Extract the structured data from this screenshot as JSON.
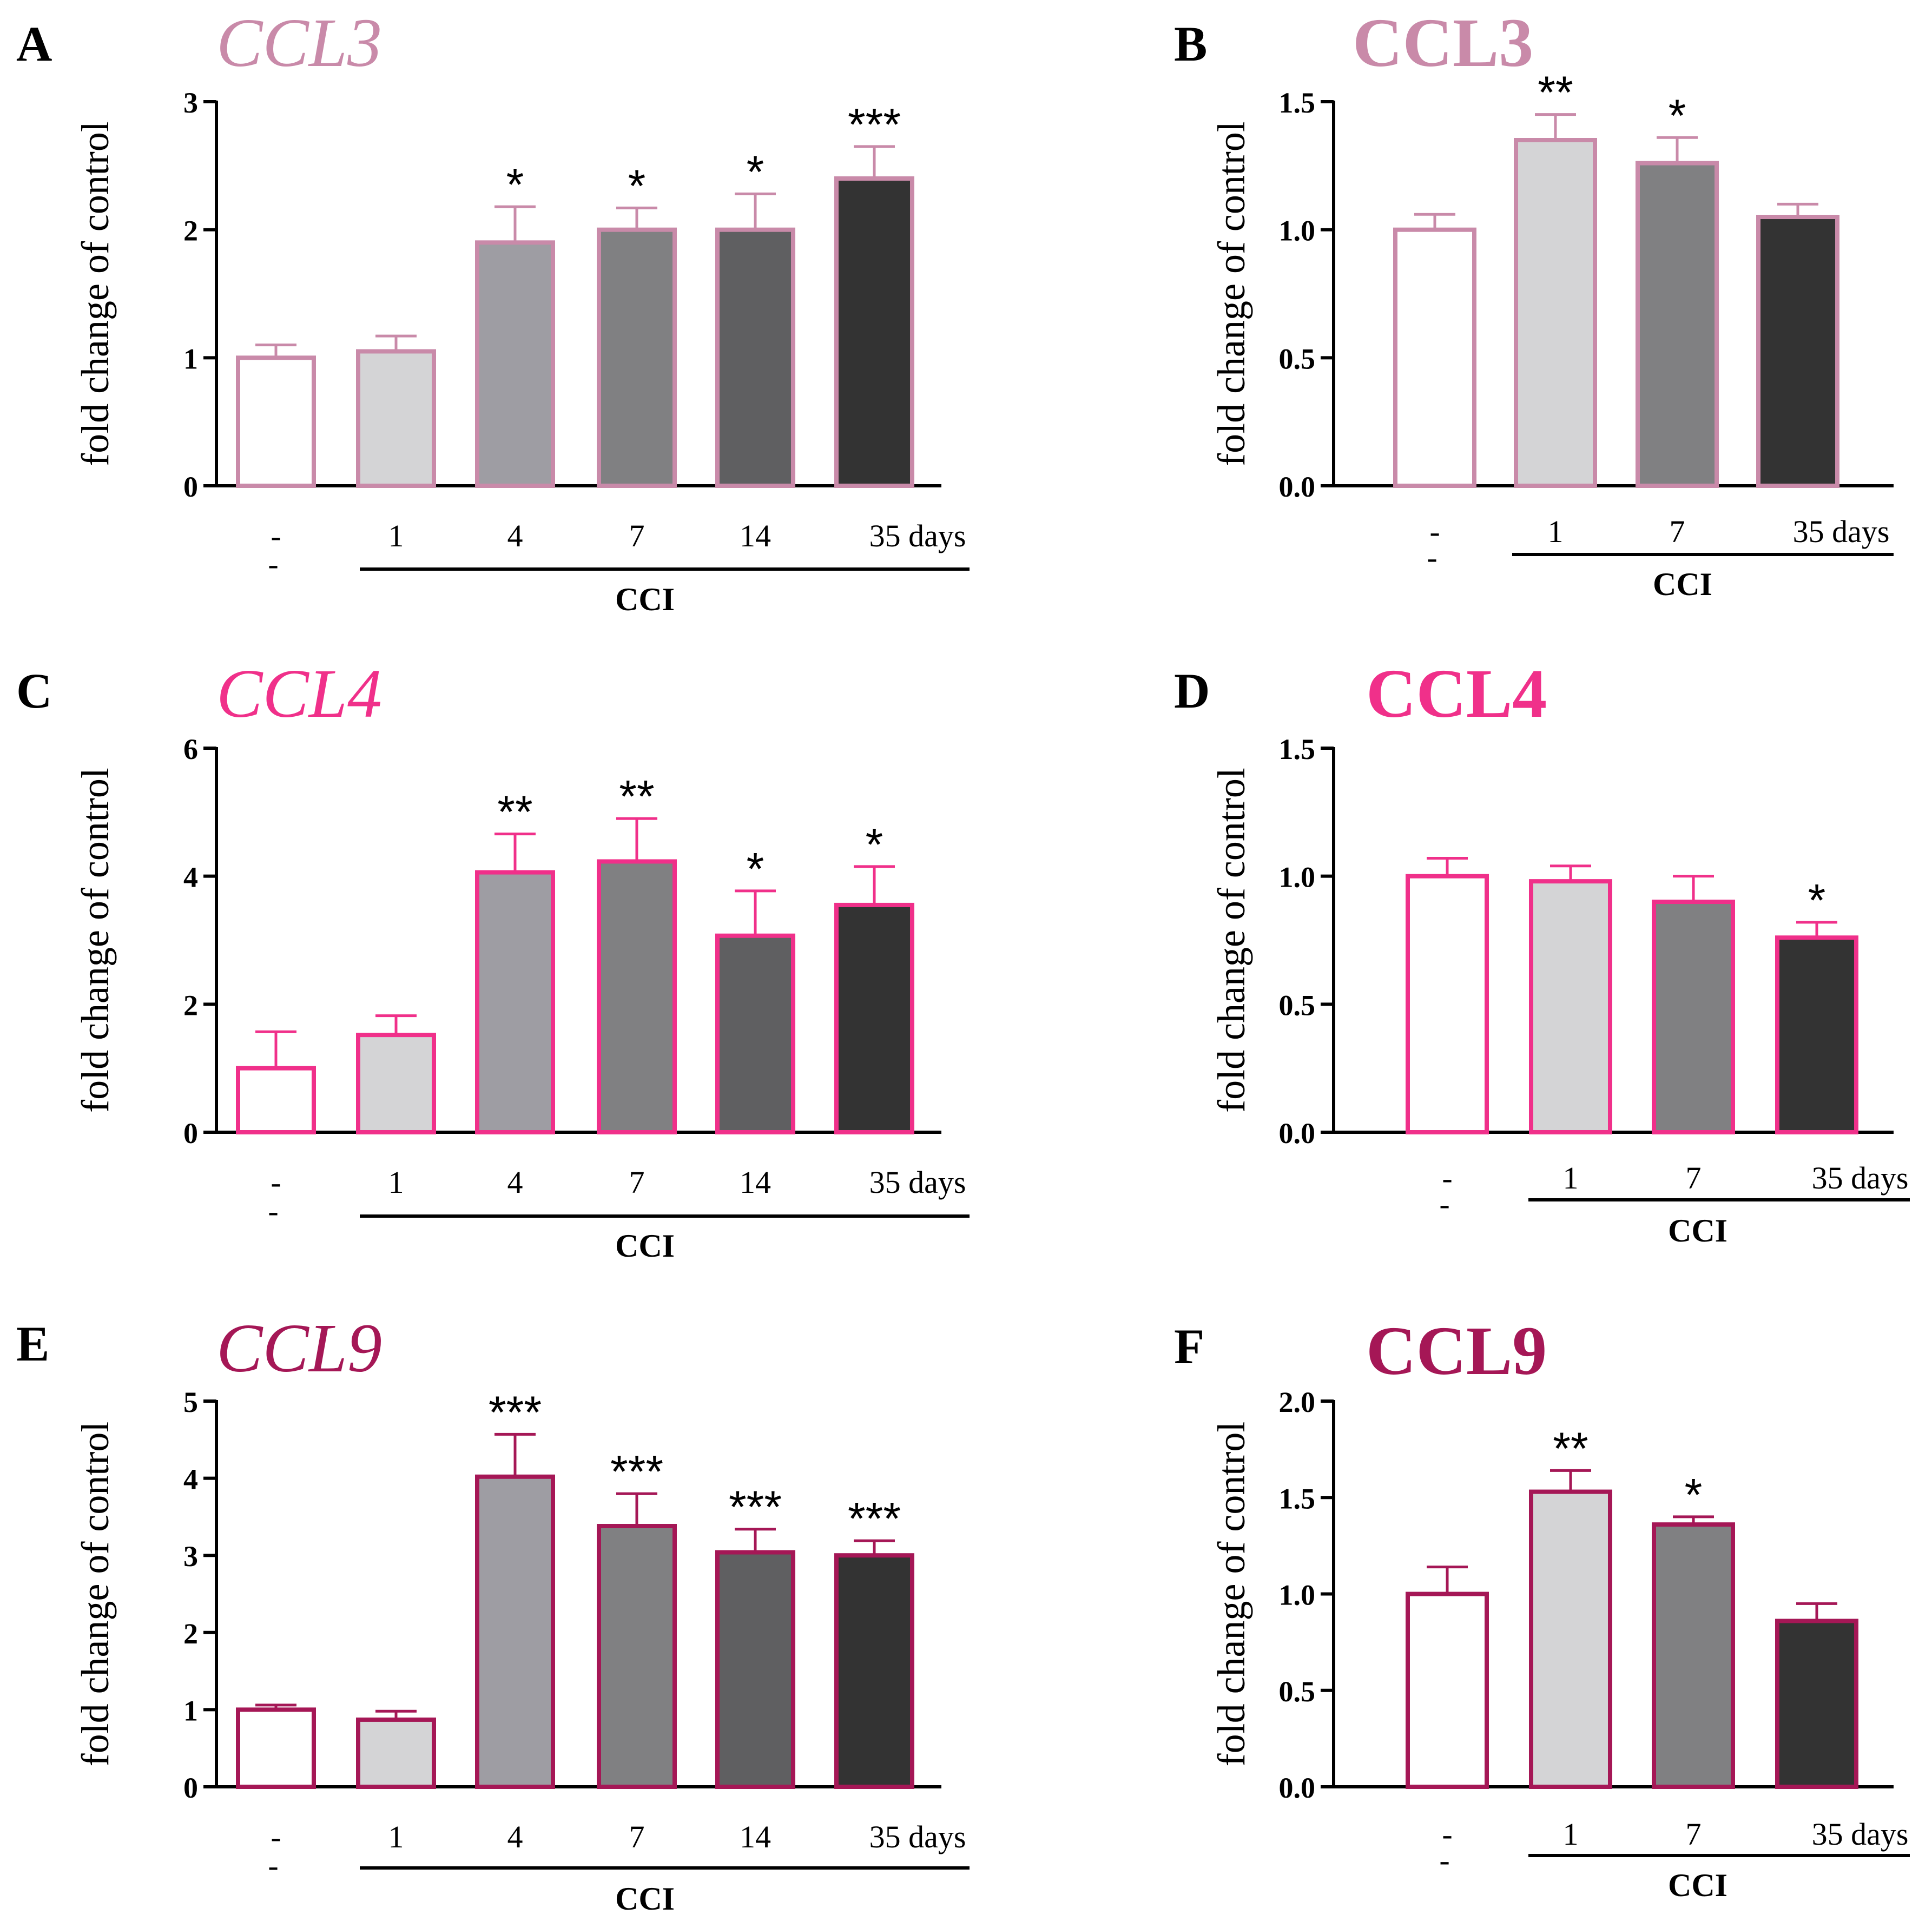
{
  "figure": {
    "ylabel": "fold change of control",
    "control_label": "-",
    "control_label_2": "-",
    "group_label": "CCI",
    "bar_fills": [
      "#ffffff",
      "#d4d4d6",
      "#9e9da3",
      "#808082",
      "#5f5f61",
      "#333333"
    ]
  },
  "chart_data": [
    {
      "panel": "A",
      "title": "CCL3",
      "title_style": "italic",
      "color": "#c98aa9",
      "type": "bar",
      "xlabel": "",
      "ylabel": "fold change of control",
      "categories": [
        "-",
        "1",
        "4",
        "7",
        "14",
        "35 days"
      ],
      "values": [
        1.0,
        1.05,
        1.9,
        2.0,
        2.0,
        2.4
      ],
      "errors": [
        0.1,
        0.12,
        0.28,
        0.17,
        0.28,
        0.25
      ],
      "sig": [
        "",
        "",
        "*",
        "*",
        "*",
        "***"
      ],
      "ylim": [
        0,
        3
      ],
      "yticks": [
        0,
        1,
        2,
        3
      ],
      "ytick_labels": [
        "0",
        "1",
        "2",
        "3"
      ]
    },
    {
      "panel": "B",
      "title": "CCL3",
      "title_style": "bold",
      "color": "#c98aa9",
      "type": "bar",
      "xlabel": "",
      "ylabel": "fold change of control",
      "categories": [
        "-",
        "1",
        "7",
        "35 days"
      ],
      "values": [
        1.0,
        1.35,
        1.26,
        1.05
      ],
      "errors": [
        0.06,
        0.1,
        0.1,
        0.05
      ],
      "sig": [
        "",
        "**",
        "*",
        ""
      ],
      "ylim": [
        0,
        1.5
      ],
      "yticks": [
        0,
        0.5,
        1.0,
        1.5
      ],
      "ytick_labels": [
        "0.0",
        "0.5",
        "1.0",
        "1.5"
      ]
    },
    {
      "panel": "C",
      "title": "CCL4",
      "title_style": "italic",
      "color": "#f0308a",
      "type": "bar",
      "xlabel": "",
      "ylabel": "fold change of control",
      "categories": [
        "-",
        "1",
        "4",
        "7",
        "14",
        "35 days"
      ],
      "values": [
        1.0,
        1.52,
        4.06,
        4.23,
        3.07,
        3.55
      ],
      "errors": [
        0.57,
        0.3,
        0.6,
        0.67,
        0.7,
        0.6
      ],
      "sig": [
        "",
        "",
        "**",
        "**",
        "*",
        "*"
      ],
      "ylim": [
        0,
        6
      ],
      "yticks": [
        0,
        2,
        4,
        6
      ],
      "ytick_labels": [
        "0",
        "2",
        "4",
        "6"
      ]
    },
    {
      "panel": "D",
      "title": "CCL4",
      "title_style": "bold",
      "color": "#f0308a",
      "type": "bar",
      "xlabel": "",
      "ylabel": "fold change of control",
      "categories": [
        "-",
        "1",
        "7",
        "35 days"
      ],
      "values": [
        1.0,
        0.98,
        0.9,
        0.76
      ],
      "errors": [
        0.07,
        0.06,
        0.1,
        0.06
      ],
      "sig": [
        "",
        "",
        "",
        "*"
      ],
      "ylim": [
        0,
        1.5
      ],
      "yticks": [
        0,
        0.5,
        1.0,
        1.5
      ],
      "ytick_labels": [
        "0.0",
        "0.5",
        "1.0",
        "1.5"
      ]
    },
    {
      "panel": "E",
      "title": "CCL9",
      "title_style": "italic",
      "color": "#a51756",
      "type": "bar",
      "xlabel": "",
      "ylabel": "fold change of control",
      "categories": [
        "-",
        "1",
        "4",
        "7",
        "14",
        "35 days"
      ],
      "values": [
        1.0,
        0.87,
        4.02,
        3.38,
        3.04,
        3.0
      ],
      "errors": [
        0.06,
        0.11,
        0.55,
        0.42,
        0.3,
        0.19
      ],
      "sig": [
        "",
        "",
        "***",
        "***",
        "***",
        "***"
      ],
      "ylim": [
        0,
        5
      ],
      "yticks": [
        0,
        1,
        2,
        3,
        4,
        5
      ],
      "ytick_labels": [
        "0",
        "1",
        "2",
        "3",
        "4",
        "5"
      ]
    },
    {
      "panel": "F",
      "title": "CCL9",
      "title_style": "bold",
      "color": "#a51756",
      "type": "bar",
      "xlabel": "",
      "ylabel": "fold change of control",
      "categories": [
        "-",
        "1",
        "7",
        "35 days"
      ],
      "values": [
        1.0,
        1.53,
        1.36,
        0.86
      ],
      "errors": [
        0.14,
        0.11,
        0.04,
        0.09
      ],
      "sig": [
        "",
        "**",
        "*",
        ""
      ],
      "ylim": [
        0,
        2.0
      ],
      "yticks": [
        0,
        0.5,
        1.0,
        1.5,
        2.0
      ],
      "ytick_labels": [
        "0.0",
        "0.5",
        "1.0",
        "1.5",
        "2.0"
      ]
    }
  ]
}
